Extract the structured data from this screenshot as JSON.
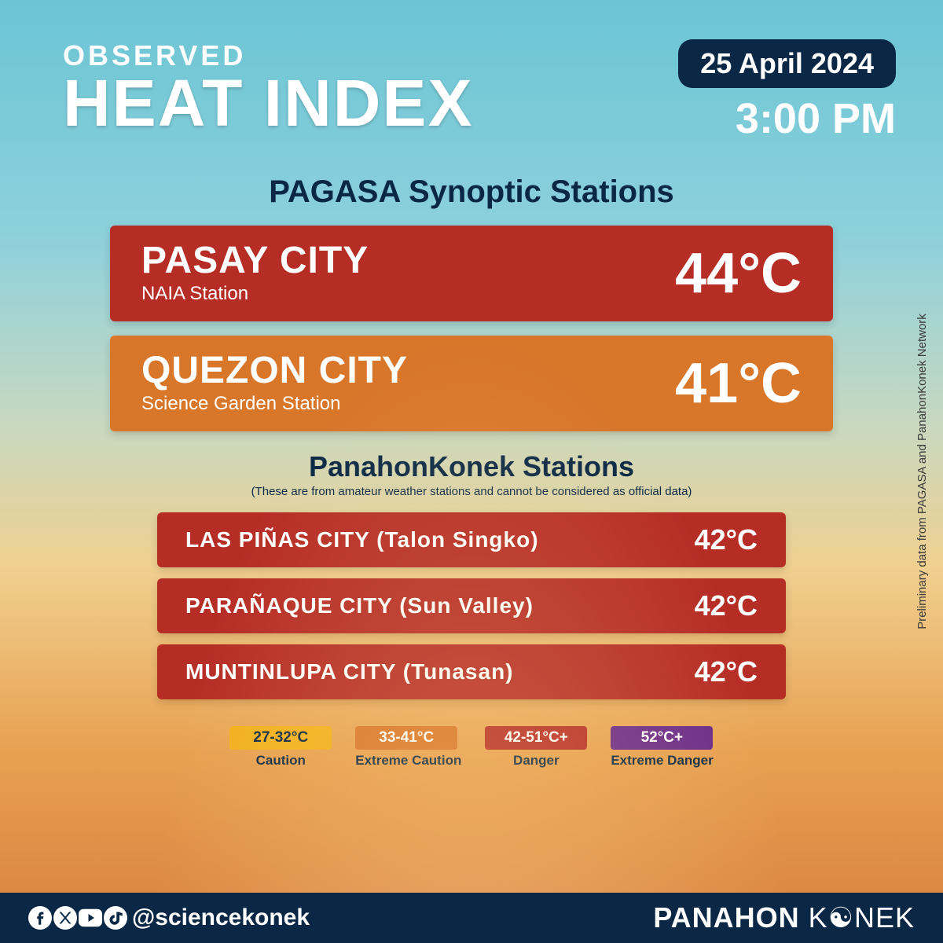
{
  "header": {
    "observed": "OBSERVED",
    "title": "HEAT INDEX",
    "date": "25 April 2024",
    "time": "3:00 PM"
  },
  "section1": {
    "title": "PAGASA Synoptic Stations",
    "stations": [
      {
        "name": "PASAY CITY",
        "sub": "NAIA Station",
        "temp": "44°C",
        "bg": "#b62d26"
      },
      {
        "name": "QUEZON CITY",
        "sub": "Science Garden Station",
        "temp": "41°C",
        "bg": "#d8762a"
      }
    ]
  },
  "section2": {
    "title": "PanahonKonek Stations",
    "disclaimer": "(These are from amateur weather stations and cannot be considered as official data)",
    "stations": [
      {
        "name": "LAS PIÑAS CITY (Talon Singko)",
        "temp": "42°C",
        "bg": "#b62d26"
      },
      {
        "name": "PARAÑAQUE CITY (Sun Valley)",
        "temp": "42°C",
        "bg": "#b62d26"
      },
      {
        "name": "MUNTINLUPA CITY (Tunasan)",
        "temp": "42°C",
        "bg": "#b62d26"
      }
    ]
  },
  "legend": [
    {
      "range": "27-32°C",
      "label": "Caution",
      "bg": "#f2b01e",
      "fg": "#0a2845"
    },
    {
      "range": "33-41°C",
      "label": "Extreme Caution",
      "bg": "#d8762a",
      "fg": "#ffffff"
    },
    {
      "range": "42-51°C+",
      "label": "Danger",
      "bg": "#b62d26",
      "fg": "#ffffff"
    },
    {
      "range": "52°C+",
      "label": "Extreme Danger",
      "bg": "#6a2a8a",
      "fg": "#ffffff"
    }
  ],
  "footer": {
    "handle": "@sciencekonek",
    "brand1": "PANAHON",
    "brand2": "K",
    "brand3": "NEK"
  },
  "side_credit": "Preliminary data from PAGASA and PanahonKonek Network"
}
